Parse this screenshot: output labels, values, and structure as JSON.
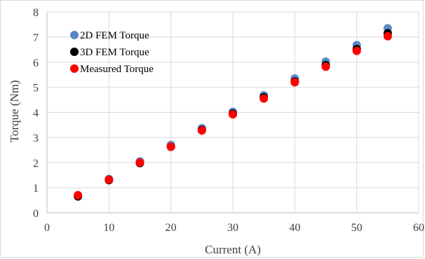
{
  "chart_data": {
    "type": "scatter",
    "title": "",
    "xlabel": "Current (A)",
    "ylabel": "Torque (Nm)",
    "xlim": [
      0,
      60
    ],
    "ylim": [
      0,
      8
    ],
    "xticks": [
      "0",
      "10",
      "20",
      "30",
      "40",
      "50",
      "60"
    ],
    "yticks": [
      "0",
      "1",
      "2",
      "3",
      "4",
      "5",
      "6",
      "7",
      "8"
    ],
    "grid": true,
    "legend_position": "top-left",
    "series": [
      {
        "name": "2D FEM Torque",
        "color": "#5b87c5",
        "x": [
          5,
          10,
          15,
          20,
          25,
          30,
          35,
          40,
          45,
          50,
          55
        ],
        "y": [
          0.7,
          1.35,
          2.05,
          2.7,
          3.37,
          4.02,
          4.68,
          5.35,
          6.02,
          6.68,
          7.35
        ]
      },
      {
        "name": "3D FEM Torque",
        "color": "#000000",
        "x": [
          5,
          10,
          15,
          20,
          25,
          30,
          35,
          40,
          45,
          50,
          55
        ],
        "y": [
          0.65,
          1.3,
          1.98,
          2.63,
          3.3,
          3.95,
          4.6,
          5.23,
          5.88,
          6.52,
          7.15
        ]
      },
      {
        "name": "Measured Torque",
        "color": "#ff0000",
        "x": [
          5,
          10,
          15,
          20,
          25,
          30,
          35,
          40,
          45,
          50,
          55
        ],
        "y": [
          0.7,
          1.32,
          2.0,
          2.63,
          3.28,
          3.92,
          4.55,
          5.2,
          5.82,
          6.45,
          7.03
        ]
      }
    ]
  }
}
